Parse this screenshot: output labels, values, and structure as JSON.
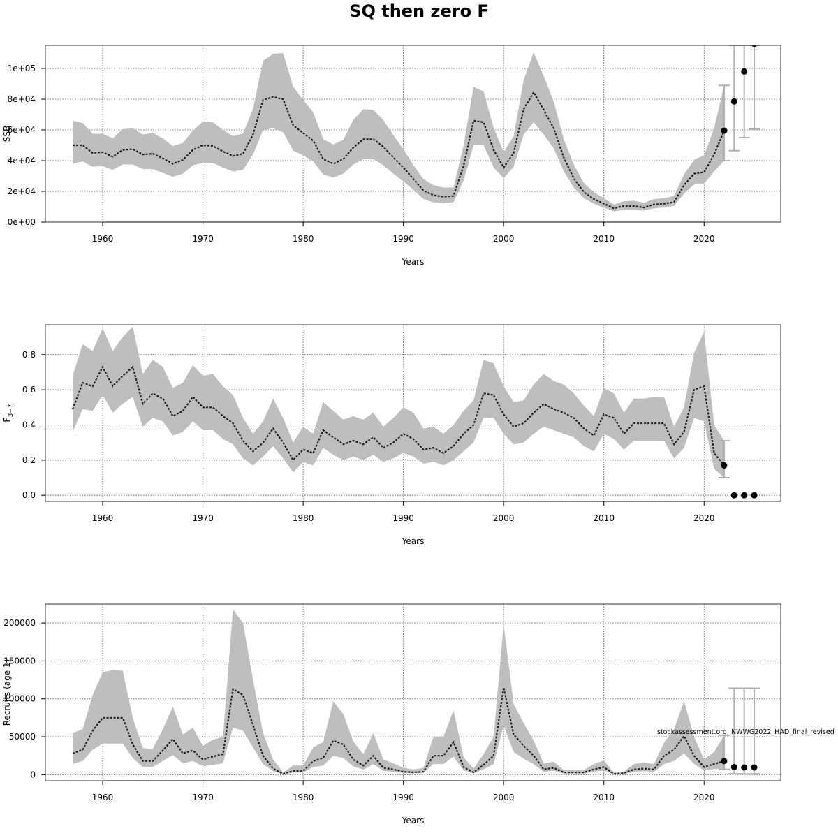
{
  "title": "SQ then zero F",
  "watermark": "stockassessment.org, NWWG2022_HAD_final_revised",
  "colors": {
    "band": "#bebebe",
    "line": "#222222",
    "error_bar": "#b0b0b0",
    "point": "#000000"
  },
  "chart_data": [
    {
      "type": "line",
      "xlabel": "Years",
      "ylabel": "SSB",
      "xlim": [
        1957,
        2025
      ],
      "ylim": [
        0,
        115000
      ],
      "x_ticks": [
        1960,
        1970,
        1980,
        1990,
        2000,
        2010,
        2020
      ],
      "x_tick_labels": [
        "1960",
        "1970",
        "1980",
        "1990",
        "2000",
        "2010",
        "2020"
      ],
      "y_ticks": [
        0,
        20000,
        40000,
        60000,
        80000,
        100000
      ],
      "y_tick_labels": [
        "0e+00",
        "2e+04",
        "4e+04",
        "6e+04",
        "8e+04",
        "1e+05"
      ],
      "grid": true,
      "series": [
        {
          "x": [
            1957,
            1958,
            1959,
            1960,
            1961,
            1962,
            1963,
            1964,
            1965,
            1966,
            1967,
            1968,
            1969,
            1970,
            1971,
            1972,
            1973,
            1974,
            1975,
            1976,
            1977,
            1978,
            1979,
            1980,
            1981,
            1982,
            1983,
            1984,
            1985,
            1986,
            1987,
            1988,
            1989,
            1990,
            1991,
            1992,
            1993,
            1994,
            1995,
            1996,
            1997,
            1998,
            1999,
            2000,
            2001,
            2002,
            2003,
            2004,
            2005,
            2006,
            2007,
            2008,
            2009,
            2010,
            2011,
            2012,
            2013,
            2014,
            2015,
            2016,
            2017,
            2018,
            2019,
            2020,
            2021,
            2022
          ],
          "y": [
            50000,
            50000,
            45000,
            45500,
            42500,
            47000,
            47500,
            44000,
            44500,
            41500,
            38000,
            40500,
            47000,
            50000,
            49500,
            46000,
            43000,
            44500,
            57000,
            79500,
            81500,
            80000,
            63000,
            58000,
            53000,
            41000,
            38000,
            41000,
            48500,
            54000,
            54000,
            49000,
            42000,
            35500,
            28000,
            20500,
            17500,
            16500,
            17000,
            36500,
            66000,
            65000,
            47000,
            35500,
            45000,
            73500,
            84500,
            73000,
            61000,
            42000,
            28500,
            19500,
            15000,
            12000,
            9000,
            10500,
            10500,
            9500,
            11500,
            12000,
            13000,
            24000,
            31500,
            32500,
            44000,
            59500
          ],
          "lower": [
            38000,
            39500,
            36000,
            36500,
            34000,
            37500,
            37500,
            34500,
            34500,
            32000,
            29500,
            31500,
            37000,
            38500,
            38500,
            35500,
            33000,
            34000,
            44000,
            60000,
            61000,
            58500,
            46500,
            43500,
            39500,
            31000,
            29000,
            31500,
            37500,
            41000,
            41000,
            37000,
            31500,
            26500,
            21000,
            15000,
            12800,
            12300,
            13000,
            27000,
            50000,
            50000,
            35500,
            28500,
            36000,
            57000,
            65000,
            57000,
            48000,
            33000,
            22500,
            15500,
            12000,
            9500,
            7000,
            8000,
            8000,
            7500,
            9000,
            9500,
            10500,
            18500,
            24500,
            25000,
            33000,
            40000
          ],
          "upper": [
            66000,
            64500,
            57500,
            57500,
            54500,
            60500,
            61000,
            57000,
            58000,
            54500,
            49500,
            51500,
            59500,
            65500,
            65000,
            60000,
            56000,
            57500,
            74000,
            105000,
            109500,
            110000,
            88000,
            79500,
            71500,
            54000,
            50500,
            53500,
            66500,
            73500,
            73000,
            66500,
            56500,
            47500,
            37000,
            28000,
            24000,
            22500,
            22500,
            49500,
            88000,
            85000,
            61500,
            45500,
            56000,
            92500,
            110500,
            95000,
            78500,
            54000,
            37500,
            25500,
            19500,
            15500,
            11500,
            13500,
            14000,
            12500,
            15000,
            15500,
            17000,
            31000,
            40500,
            43500,
            61000,
            89000
          ]
        }
      ],
      "forecast": {
        "x": [
          2022,
          2023,
          2024,
          2025
        ],
        "y": [
          59500,
          78500,
          98000,
          116000
        ],
        "lower": [
          40000,
          46500,
          55000,
          60500
        ],
        "upper": [
          89000,
          115000,
          115000,
          115000
        ]
      }
    },
    {
      "type": "line",
      "xlabel": "Years",
      "ylabel": "F",
      "ylabel_subscript": "3−7",
      "xlim": [
        1957,
        2025
      ],
      "ylim": [
        -0.035,
        0.97
      ],
      "x_ticks": [
        1960,
        1970,
        1980,
        1990,
        2000,
        2010,
        2020
      ],
      "x_tick_labels": [
        "1960",
        "1970",
        "1980",
        "1990",
        "2000",
        "2010",
        "2020"
      ],
      "y_ticks": [
        0,
        0.2,
        0.4,
        0.6,
        0.8
      ],
      "y_tick_labels": [
        "0.0",
        "0.2",
        "0.4",
        "0.6",
        "0.8"
      ],
      "grid": true,
      "series": [
        {
          "x": [
            1957,
            1958,
            1959,
            1960,
            1961,
            1962,
            1963,
            1964,
            1965,
            1966,
            1967,
            1968,
            1969,
            1970,
            1971,
            1972,
            1973,
            1974,
            1975,
            1976,
            1977,
            1978,
            1979,
            1980,
            1981,
            1982,
            1983,
            1984,
            1985,
            1986,
            1987,
            1988,
            1989,
            1990,
            1991,
            1992,
            1993,
            1994,
            1995,
            1996,
            1997,
            1998,
            1999,
            2000,
            2001,
            2002,
            2003,
            2004,
            2005,
            2006,
            2007,
            2008,
            2009,
            2010,
            2011,
            2012,
            2013,
            2014,
            2015,
            2016,
            2017,
            2018,
            2019,
            2020,
            2021,
            2022
          ],
          "y": [
            0.49,
            0.64,
            0.62,
            0.73,
            0.62,
            0.68,
            0.73,
            0.52,
            0.58,
            0.55,
            0.45,
            0.48,
            0.56,
            0.5,
            0.5,
            0.45,
            0.41,
            0.31,
            0.25,
            0.3,
            0.38,
            0.3,
            0.2,
            0.26,
            0.24,
            0.37,
            0.33,
            0.29,
            0.31,
            0.29,
            0.33,
            0.27,
            0.3,
            0.35,
            0.32,
            0.26,
            0.27,
            0.24,
            0.28,
            0.35,
            0.4,
            0.58,
            0.57,
            0.46,
            0.39,
            0.41,
            0.47,
            0.52,
            0.49,
            0.47,
            0.44,
            0.38,
            0.34,
            0.46,
            0.44,
            0.35,
            0.41,
            0.41,
            0.41,
            0.41,
            0.29,
            0.36,
            0.6,
            0.62,
            0.24,
            0.17
          ],
          "lower": [
            0.36,
            0.49,
            0.48,
            0.57,
            0.47,
            0.52,
            0.56,
            0.39,
            0.44,
            0.42,
            0.34,
            0.36,
            0.42,
            0.37,
            0.37,
            0.32,
            0.29,
            0.21,
            0.17,
            0.22,
            0.28,
            0.21,
            0.13,
            0.19,
            0.17,
            0.27,
            0.23,
            0.2,
            0.22,
            0.2,
            0.23,
            0.19,
            0.21,
            0.24,
            0.22,
            0.18,
            0.19,
            0.17,
            0.2,
            0.25,
            0.3,
            0.44,
            0.44,
            0.35,
            0.29,
            0.3,
            0.35,
            0.39,
            0.37,
            0.35,
            0.33,
            0.28,
            0.25,
            0.35,
            0.32,
            0.26,
            0.31,
            0.31,
            0.31,
            0.31,
            0.21,
            0.27,
            0.44,
            0.42,
            0.15,
            0.1
          ],
          "upper": [
            0.68,
            0.86,
            0.82,
            0.95,
            0.82,
            0.9,
            0.96,
            0.69,
            0.77,
            0.73,
            0.61,
            0.64,
            0.74,
            0.68,
            0.69,
            0.62,
            0.57,
            0.44,
            0.35,
            0.42,
            0.55,
            0.44,
            0.3,
            0.39,
            0.35,
            0.53,
            0.48,
            0.43,
            0.45,
            0.43,
            0.47,
            0.39,
            0.44,
            0.5,
            0.47,
            0.38,
            0.39,
            0.35,
            0.4,
            0.48,
            0.54,
            0.77,
            0.75,
            0.62,
            0.53,
            0.54,
            0.63,
            0.69,
            0.65,
            0.63,
            0.58,
            0.51,
            0.45,
            0.61,
            0.58,
            0.47,
            0.55,
            0.55,
            0.56,
            0.56,
            0.39,
            0.5,
            0.81,
            0.93,
            0.4,
            0.31
          ]
        }
      ],
      "forecast": {
        "x": [
          2022,
          2023,
          2024,
          2025
        ],
        "y": [
          0.17,
          0.0,
          0.0,
          0.0
        ],
        "lower": [
          0.1,
          null,
          null,
          null
        ],
        "upper": [
          0.31,
          null,
          null,
          null
        ]
      }
    },
    {
      "type": "line",
      "xlabel": "Years",
      "ylabel": "Recruits (age 1)",
      "xlim": [
        1957,
        2025
      ],
      "ylim": [
        -8000,
        225000
      ],
      "x_ticks": [
        1960,
        1970,
        1980,
        1990,
        2000,
        2010,
        2020
      ],
      "x_tick_labels": [
        "1960",
        "1970",
        "1980",
        "1990",
        "2000",
        "2010",
        "2020"
      ],
      "y_ticks": [
        0,
        50000,
        100000,
        150000,
        200000
      ],
      "y_tick_labels": [
        "0",
        "50000",
        "100000",
        "150000",
        "200000"
      ],
      "grid": true,
      "series": [
        {
          "x": [
            1957,
            1958,
            1959,
            1960,
            1961,
            1962,
            1963,
            1964,
            1965,
            1966,
            1967,
            1968,
            1969,
            1970,
            1971,
            1972,
            1973,
            1974,
            1975,
            1976,
            1977,
            1978,
            1979,
            1980,
            1981,
            1982,
            1983,
            1984,
            1985,
            1986,
            1987,
            1988,
            1989,
            1990,
            1991,
            1992,
            1993,
            1994,
            1995,
            1996,
            1997,
            1998,
            1999,
            2000,
            2001,
            2002,
            2003,
            2004,
            2005,
            2006,
            2007,
            2008,
            2009,
            2010,
            2011,
            2012,
            2013,
            2014,
            2015,
            2016,
            2017,
            2018,
            2019,
            2020,
            2021,
            2022
          ],
          "y": [
            28000,
            33000,
            58000,
            75000,
            75000,
            75000,
            40000,
            18000,
            18000,
            32000,
            47000,
            28000,
            32000,
            20000,
            24000,
            27000,
            113000,
            105000,
            65000,
            25000,
            8000,
            1000,
            5000,
            5000,
            18000,
            22000,
            45000,
            40000,
            20000,
            12000,
            25000,
            9000,
            7000,
            4000,
            3000,
            4000,
            25000,
            25000,
            43000,
            10000,
            3000,
            13000,
            25000,
            115000,
            53000,
            38000,
            25000,
            7000,
            9000,
            3000,
            3000,
            3000,
            7000,
            10000,
            1000,
            2000,
            7000,
            8000,
            7000,
            25000,
            33000,
            51000,
            25000,
            10000,
            14000,
            18000
          ],
          "lower": [
            14000,
            18000,
            33000,
            41000,
            41000,
            41000,
            22000,
            10000,
            10000,
            18000,
            26000,
            15000,
            18000,
            11000,
            13000,
            15000,
            62000,
            58000,
            36000,
            14000,
            4500,
            500,
            2800,
            2800,
            10000,
            12000,
            25000,
            22000,
            11000,
            6500,
            14000,
            5000,
            3900,
            2200,
            1700,
            2200,
            14000,
            14000,
            24000,
            5500,
            1700,
            7000,
            14000,
            65000,
            30000,
            21000,
            14000,
            3900,
            5000,
            1700,
            1700,
            1700,
            3900,
            5500,
            500,
            1100,
            3900,
            4500,
            3900,
            14000,
            18000,
            28000,
            14000,
            5500,
            7500,
            8000
          ],
          "upper": [
            55000,
            60000,
            105000,
            135000,
            138000,
            137000,
            75000,
            35000,
            34000,
            60000,
            90000,
            53000,
            62000,
            38000,
            46000,
            50000,
            218000,
            200000,
            125000,
            55000,
            20000,
            3000,
            12000,
            12000,
            36000,
            43000,
            97000,
            80000,
            44000,
            27000,
            55000,
            20000,
            15000,
            9000,
            7000,
            9000,
            50000,
            50000,
            85000,
            23000,
            8000,
            27000,
            50000,
            198000,
            93000,
            68000,
            45000,
            15000,
            17000,
            6000,
            6000,
            6000,
            14000,
            19000,
            2500,
            4000,
            14000,
            16000,
            14000,
            42000,
            60000,
            97000,
            50000,
            20000,
            30000,
            52000
          ]
        }
      ],
      "forecast": {
        "x": [
          2022,
          2023,
          2024,
          2025
        ],
        "y": [
          18000,
          10000,
          9500,
          9500
        ],
        "lower": [
          7000,
          1000,
          1000,
          1000
        ],
        "upper": [
          52000,
          114000,
          114000,
          114000
        ]
      }
    }
  ]
}
